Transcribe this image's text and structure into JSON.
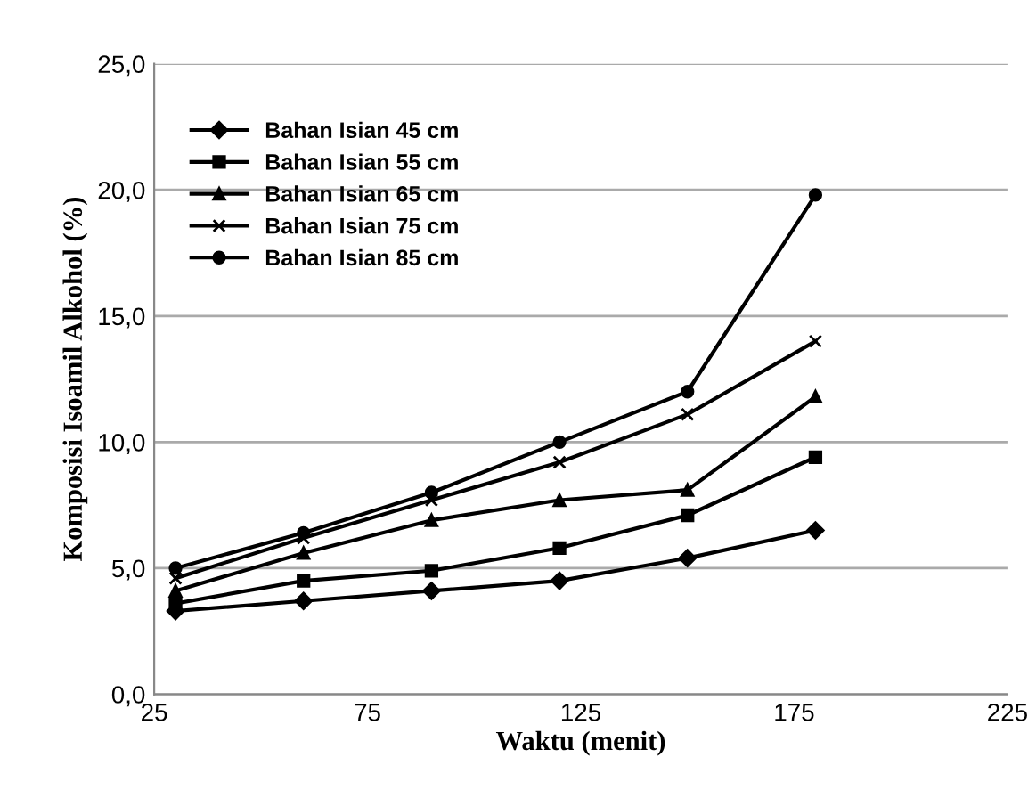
{
  "chart_data": {
    "type": "line",
    "xlabel": "Waktu (menit)",
    "ylabel": "Komposisi Isoamil Alkohol (%)",
    "x": [
      30,
      60,
      90,
      120,
      150,
      180
    ],
    "series": [
      {
        "name": "Bahan Isian 45 cm",
        "color": "#000000",
        "marker": "diamond",
        "values": [
          3.3,
          3.7,
          4.1,
          4.5,
          5.4,
          6.5
        ]
      },
      {
        "name": "Bahan Isian 55 cm",
        "color": "#000000",
        "marker": "square",
        "values": [
          3.6,
          4.5,
          4.9,
          5.8,
          7.1,
          9.4
        ]
      },
      {
        "name": "Bahan Isian 65 cm",
        "color": "#000000",
        "marker": "triangle",
        "values": [
          4.1,
          5.6,
          6.9,
          7.7,
          8.1,
          11.8
        ]
      },
      {
        "name": "Bahan Isian 75 cm",
        "color": "#000000",
        "marker": "cross",
        "values": [
          4.6,
          6.2,
          7.7,
          9.2,
          11.1,
          14.0
        ]
      },
      {
        "name": "Bahan Isian 85 cm",
        "color": "#000000",
        "marker": "circle",
        "values": [
          5.0,
          6.4,
          8.0,
          10.0,
          12.0,
          19.8
        ]
      }
    ],
    "xlim": [
      25,
      225
    ],
    "xticks": [
      25,
      75,
      125,
      175,
      225
    ],
    "ylim": [
      0,
      25
    ],
    "yticks": [
      {
        "value": 0,
        "label": "0,0"
      },
      {
        "value": 5,
        "label": "5,0"
      },
      {
        "value": 10,
        "label": "10,0"
      },
      {
        "value": 15,
        "label": "15,0"
      },
      {
        "value": 20,
        "label": "20,0"
      },
      {
        "value": 25,
        "label": "25,0"
      }
    ],
    "grid": "y",
    "legend": "top left",
    "line_style": "solid"
  }
}
